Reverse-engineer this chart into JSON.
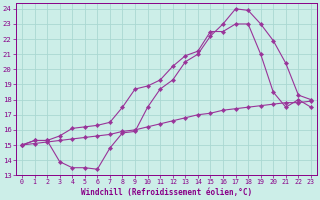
{
  "xlabel": "Windchill (Refroidissement éolien,°C)",
  "background_color": "#cceee8",
  "grid_color": "#aad8d2",
  "line_color": "#993399",
  "xlim_min": -0.5,
  "xlim_max": 23.5,
  "ylim_min": 13,
  "ylim_max": 24.4,
  "xticks": [
    0,
    1,
    2,
    3,
    4,
    5,
    6,
    7,
    8,
    9,
    10,
    11,
    12,
    13,
    14,
    15,
    16,
    17,
    18,
    19,
    20,
    21,
    22,
    23
  ],
  "yticks": [
    13,
    14,
    15,
    16,
    17,
    18,
    19,
    20,
    21,
    22,
    23,
    24
  ],
  "line1_x": [
    0,
    1,
    2,
    3,
    4,
    5,
    6,
    7,
    8,
    9,
    10,
    11,
    12,
    13,
    14,
    15,
    16,
    17,
    18,
    19,
    20,
    21,
    22,
    23
  ],
  "line1_y": [
    15,
    15.3,
    15.3,
    13.9,
    13.5,
    13.5,
    13.4,
    14.8,
    15.8,
    15.9,
    17.5,
    18.7,
    19.3,
    20.5,
    21.0,
    22.2,
    23.0,
    24.0,
    23.9,
    23.0,
    21.9,
    20.4,
    18.3,
    18.0
  ],
  "line2_x": [
    0,
    1,
    2,
    3,
    4,
    5,
    6,
    7,
    8,
    9,
    10,
    11,
    12,
    13,
    14,
    15,
    16,
    17,
    18,
    19,
    20,
    21,
    22,
    23
  ],
  "line2_y": [
    15,
    15.3,
    15.3,
    15.6,
    16.1,
    16.2,
    16.3,
    16.5,
    17.5,
    18.7,
    18.9,
    19.3,
    20.2,
    20.9,
    21.2,
    22.5,
    22.5,
    23.0,
    23.0,
    21.0,
    18.5,
    17.5,
    18.0,
    17.5
  ],
  "line3_x": [
    0,
    1,
    2,
    3,
    4,
    5,
    6,
    7,
    8,
    9,
    10,
    11,
    12,
    13,
    14,
    15,
    16,
    17,
    18,
    19,
    20,
    21,
    22,
    23
  ],
  "line3_y": [
    15,
    15.1,
    15.2,
    15.3,
    15.4,
    15.5,
    15.6,
    15.7,
    15.9,
    16.0,
    16.2,
    16.4,
    16.6,
    16.8,
    17.0,
    17.1,
    17.3,
    17.4,
    17.5,
    17.6,
    17.7,
    17.8,
    17.8,
    17.9
  ]
}
